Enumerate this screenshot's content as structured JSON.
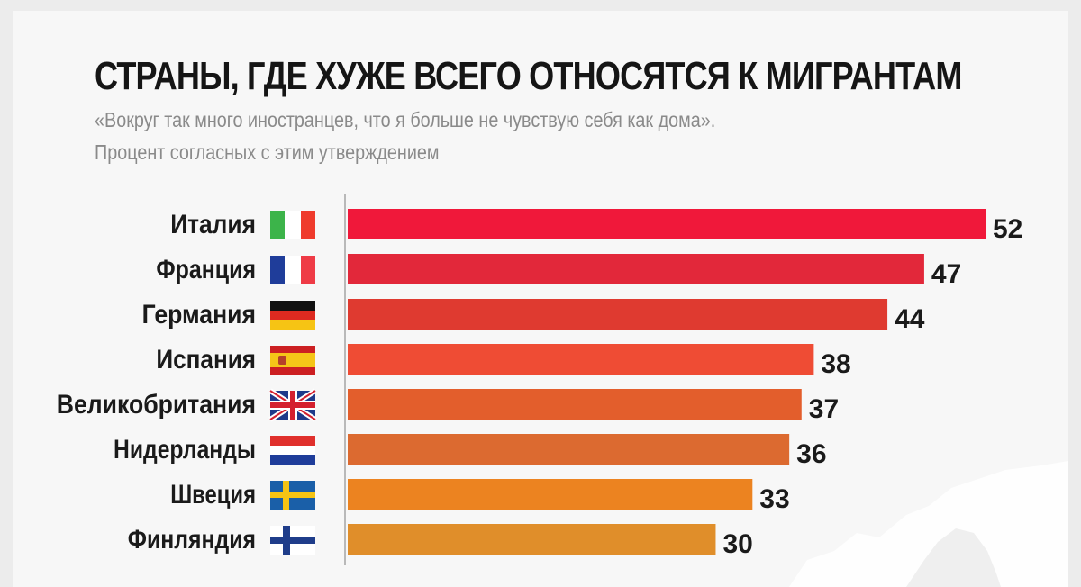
{
  "title": "СТРАНЫ, ГДЕ ХУЖЕ ВСЕГО ОТНОСЯТСЯ К МИГРАНТАМ",
  "subtitle_line1": "«Вокруг так много иностранцев, что я больше не чувствую себя как дома».",
  "subtitle_line2": "Процент согласных с этим утверждением",
  "chart_data": {
    "type": "bar",
    "orientation": "horizontal",
    "categories": [
      "Италия",
      "Франция",
      "Германия",
      "Испания",
      "Великобритания",
      "Нидерланды",
      "Швеция",
      "Финляндия"
    ],
    "values": [
      52,
      47,
      44,
      38,
      37,
      36,
      33,
      30
    ],
    "flags": [
      "flag-italy-icon",
      "flag-france-icon",
      "flag-germany-icon",
      "flag-spain-icon",
      "flag-uk-icon",
      "flag-netherlands-icon",
      "flag-sweden-icon",
      "flag-finland-icon"
    ],
    "bar_colors": [
      "#f0183a",
      "#e2283a",
      "#df3a30",
      "#ef4c34",
      "#e35e2c",
      "#dc6a30",
      "#ec8320",
      "#e08e2a"
    ],
    "xlim": [
      0,
      52
    ],
    "grid": false
  }
}
